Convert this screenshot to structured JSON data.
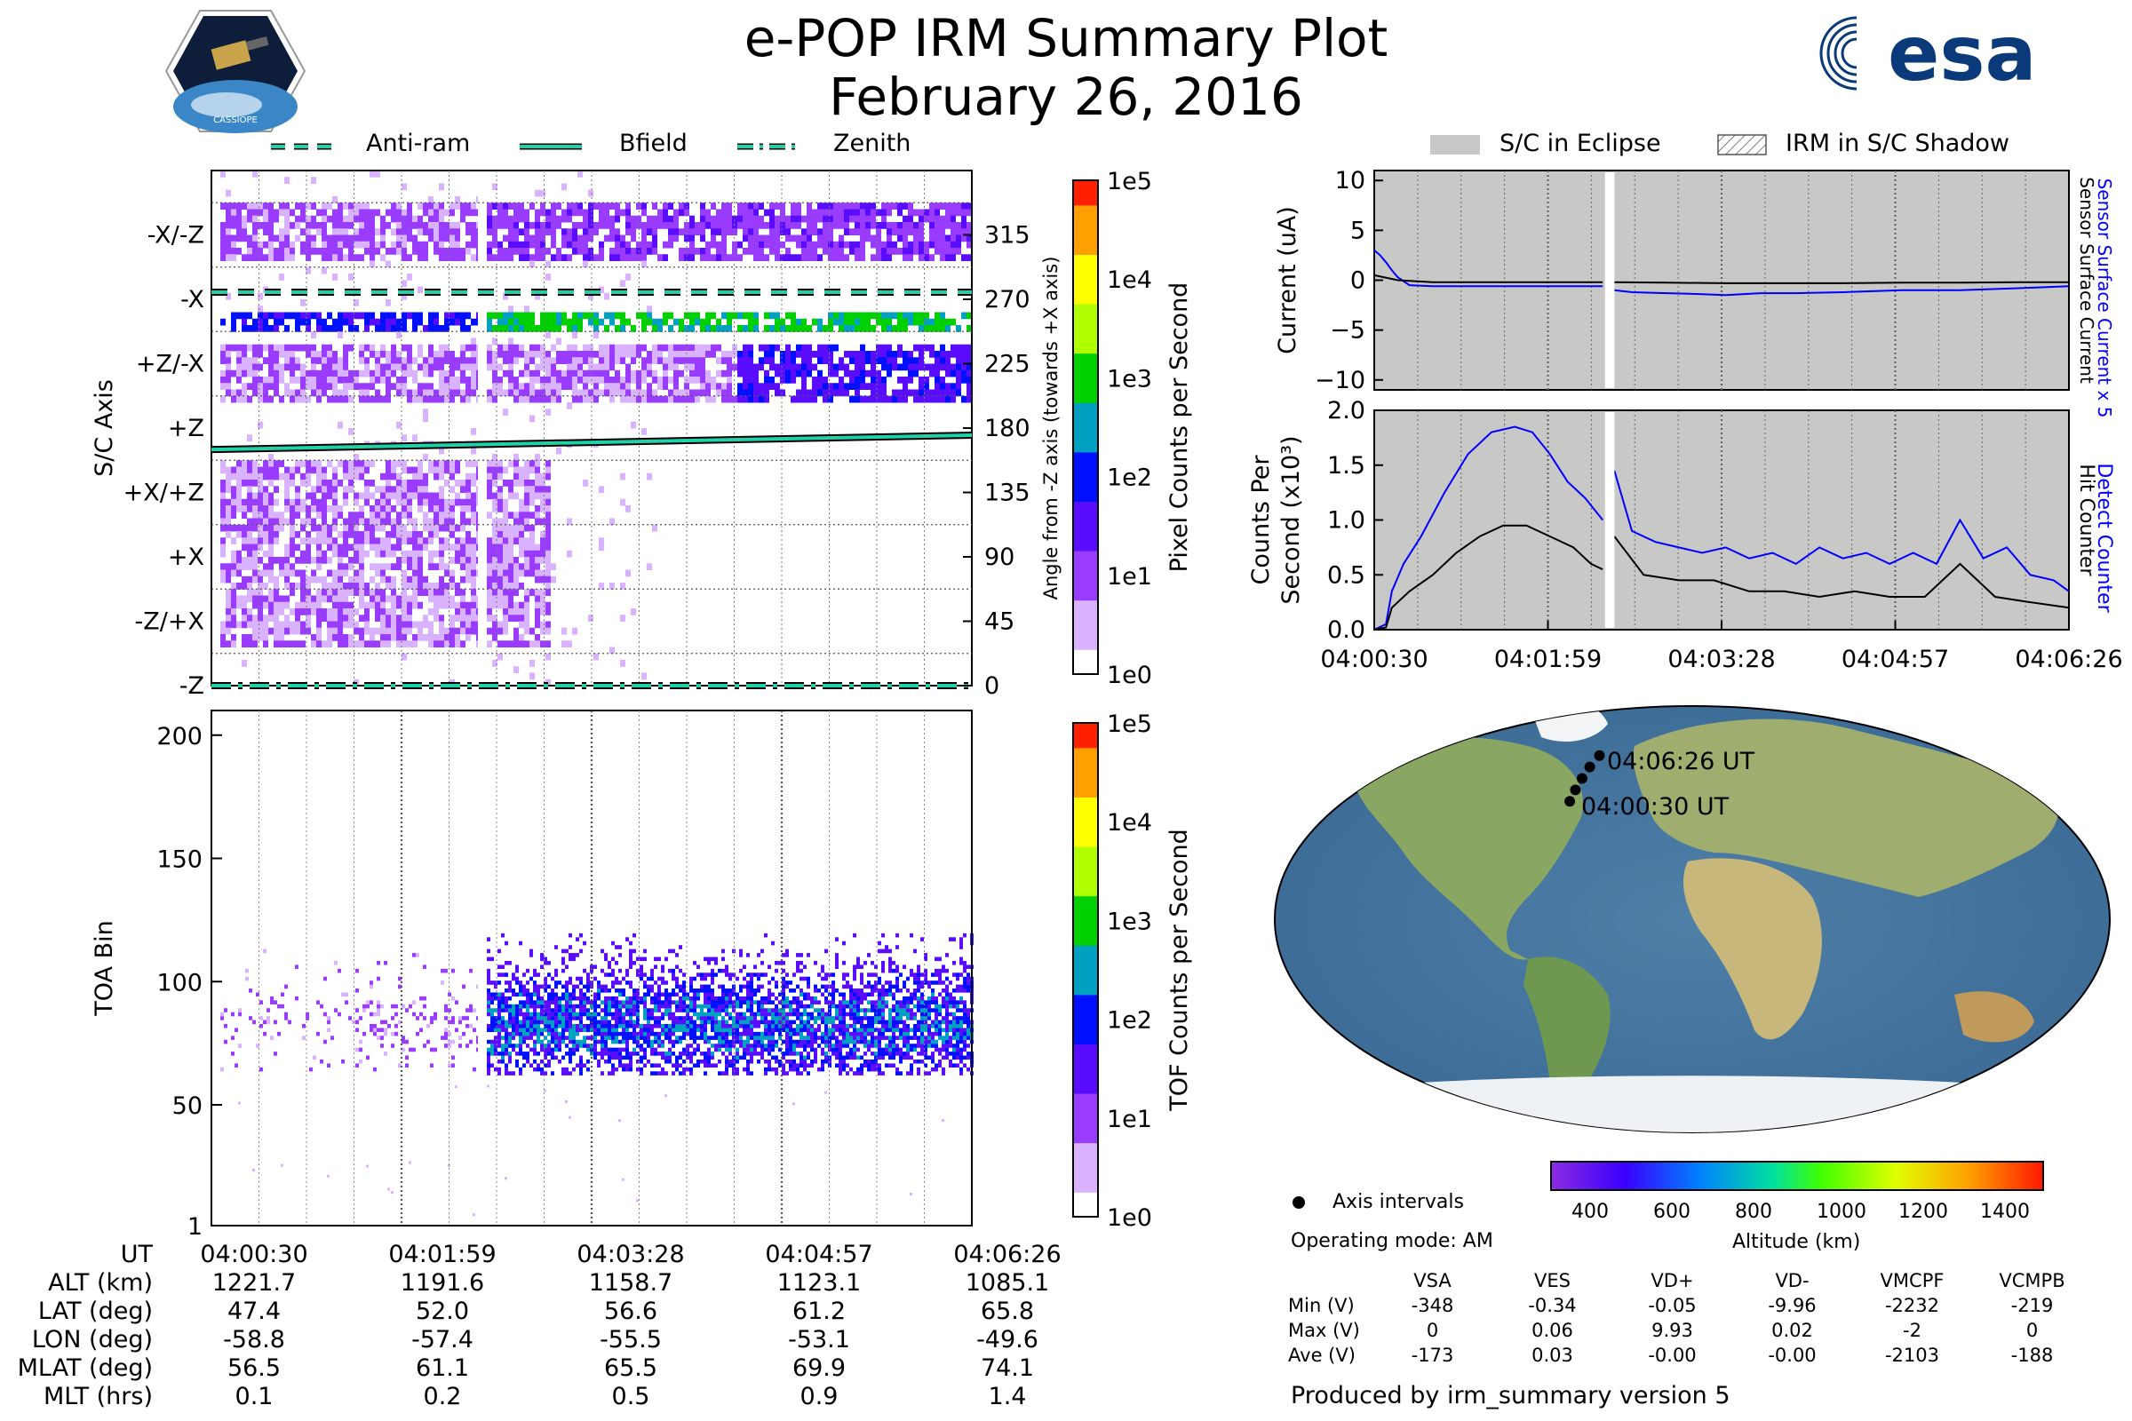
{
  "header": {
    "title": "e-POP IRM Summary Plot",
    "date": "February 26, 2016",
    "logo_left_text": "CASSIOPE",
    "logo_right_text": "esa"
  },
  "colors": {
    "cmap": [
      "#ffffff",
      "#d9b3ff",
      "#9a3cff",
      "#5a0cff",
      "#0010ff",
      "#00a0c0",
      "#00d000",
      "#b0ff00",
      "#ffff00",
      "#ffa000",
      "#ff2000"
    ],
    "anti_ram": "#1fd1a8",
    "bfield": "#1fd1a8",
    "blue": "#0000ff",
    "eclipse": "#c8c9c7"
  },
  "legends": {
    "top_left": [
      {
        "label": "Anti-ram",
        "style": "dashed"
      },
      {
        "label": "Bfield",
        "style": "solid"
      },
      {
        "label": "Zenith",
        "style": "dashdot"
      }
    ],
    "top_right": [
      {
        "label": "S/C in Eclipse"
      },
      {
        "label": "IRM in S/C Shadow"
      }
    ]
  },
  "chart_data": [
    {
      "type": "heatmap",
      "name": "sc-axis-spectrogram",
      "ylabel": "S/C Axis",
      "ylabel_right": "Angle from -Z axis (towards +X axis)",
      "y_axis_labels": [
        "-X/-Z",
        "-X",
        "+Z/-X",
        "+Z",
        "+X/+Z",
        "+X",
        "-Z/+X",
        "-Z"
      ],
      "y_right_ticks": [
        "315",
        "270",
        "225",
        "180",
        "135",
        "90",
        "45",
        "0"
      ],
      "ylim": [
        0,
        360
      ],
      "colorbar": {
        "label": "Pixel Counts per Second",
        "ticks": [
          "1e5",
          "1e4",
          "1e3",
          "1e2",
          "1e1",
          "1e0"
        ],
        "scale": "log"
      },
      "lines": [
        {
          "name": "Anti-ram",
          "angles": [
            275,
            275
          ],
          "style": "dashed"
        },
        {
          "name": "Zenith",
          "angles": [
            0,
            0
          ],
          "style": "dashdot"
        },
        {
          "name": "Bfield",
          "angles": [
            165,
            175
          ],
          "style": "solid"
        }
      ]
    },
    {
      "type": "heatmap",
      "name": "toa-spectrogram",
      "ylabel": "TOA Bin",
      "y_ticks": [
        "200",
        "150",
        "100",
        "50",
        "1"
      ],
      "ylim": [
        1,
        210
      ],
      "colorbar": {
        "label": "TOF Counts per Second",
        "ticks": [
          "1e5",
          "1e4",
          "1e3",
          "1e2",
          "1e1",
          "1e0"
        ],
        "scale": "log"
      }
    },
    {
      "type": "line",
      "name": "sensor-current",
      "ylabel": "Current (uA)",
      "y_ticks": [
        "10",
        "5",
        "0",
        "−5",
        "−10"
      ],
      "ylim": [
        -11,
        11
      ],
      "right_labels": [
        "Sensor Surface Current x 5",
        "Sensor Surface Current"
      ],
      "series": [
        {
          "name": "Sensor Surface Current x 5",
          "color": "#0000ff",
          "x": [
            0,
            0.05,
            0.1,
            0.15,
            0.2,
            0.3,
            0.5,
            0.7,
            0.9,
            1.0,
            1.2,
            1.5,
            1.8,
            1.95,
            2.05,
            2.2,
            2.5,
            2.8,
            3.0,
            3.3,
            3.6,
            4.0,
            4.5,
            5.0,
            5.5,
            5.93
          ],
          "y": [
            3,
            2.5,
            1.8,
            1.0,
            0.3,
            -0.5,
            -0.6,
            -0.6,
            -0.6,
            -0.6,
            -0.6,
            -0.6,
            -0.6,
            -0.6,
            -1.0,
            -1.2,
            -1.3,
            -1.4,
            -1.5,
            -1.3,
            -1.3,
            -1.2,
            -1.0,
            -1.0,
            -0.8,
            -0.6
          ]
        },
        {
          "name": "Sensor Surface Current",
          "color": "#000000",
          "x": [
            0,
            0.2,
            0.5,
            1.0,
            1.5,
            1.95,
            2.05,
            2.5,
            3.0,
            3.5,
            4.0,
            4.5,
            5.0,
            5.5,
            5.93
          ],
          "y": [
            0.5,
            0.0,
            -0.2,
            -0.2,
            -0.2,
            -0.2,
            -0.2,
            -0.25,
            -0.3,
            -0.3,
            -0.3,
            -0.25,
            -0.25,
            -0.2,
            -0.2
          ]
        }
      ]
    },
    {
      "type": "line",
      "name": "detect-counter",
      "ylabel": "Counts Per Second (x10³)",
      "y_ticks": [
        "2.0",
        "1.5",
        "1.0",
        "0.5",
        "0.0"
      ],
      "ylim": [
        0,
        2.0
      ],
      "x_tick_labels": [
        "04:00:30",
        "04:01:59",
        "04:03:28",
        "04:04:57",
        "04:06:26"
      ],
      "right_labels": [
        "Detect Counter",
        "Hit Counter"
      ],
      "series": [
        {
          "name": "Detect Counter",
          "color": "#0000ff",
          "x": [
            0,
            0.1,
            0.15,
            0.25,
            0.4,
            0.6,
            0.8,
            1.0,
            1.2,
            1.35,
            1.5,
            1.65,
            1.8,
            1.95,
            2.05,
            2.2,
            2.4,
            2.6,
            2.8,
            3.0,
            3.2,
            3.4,
            3.6,
            3.8,
            4.0,
            4.2,
            4.4,
            4.6,
            4.8,
            5.0,
            5.2,
            5.4,
            5.6,
            5.8,
            5.93
          ],
          "y": [
            0.0,
            0.05,
            0.35,
            0.6,
            0.85,
            1.25,
            1.6,
            1.8,
            1.85,
            1.8,
            1.6,
            1.35,
            1.2,
            1.0,
            1.45,
            0.9,
            0.8,
            0.75,
            0.7,
            0.75,
            0.65,
            0.7,
            0.6,
            0.75,
            0.65,
            0.7,
            0.6,
            0.7,
            0.6,
            1.0,
            0.65,
            0.75,
            0.5,
            0.45,
            0.35
          ]
        },
        {
          "name": "Hit Counter",
          "color": "#000000",
          "x": [
            0,
            0.1,
            0.15,
            0.3,
            0.5,
            0.7,
            0.9,
            1.1,
            1.3,
            1.5,
            1.7,
            1.85,
            1.95,
            2.05,
            2.3,
            2.6,
            2.9,
            3.2,
            3.5,
            3.8,
            4.1,
            4.4,
            4.7,
            5.0,
            5.3,
            5.6,
            5.93
          ],
          "y": [
            0.0,
            0.02,
            0.2,
            0.35,
            0.5,
            0.7,
            0.85,
            0.95,
            0.95,
            0.85,
            0.75,
            0.6,
            0.55,
            0.85,
            0.5,
            0.45,
            0.45,
            0.35,
            0.35,
            0.3,
            0.35,
            0.3,
            0.3,
            0.6,
            0.3,
            0.25,
            0.2
          ]
        }
      ]
    }
  ],
  "map": {
    "label_start": "04:00:30 UT",
    "label_end": "04:06:26 UT",
    "track": [
      [
        -58.8,
        47.4
      ],
      [
        -57.4,
        52.0
      ],
      [
        -55.5,
        56.6
      ],
      [
        -53.1,
        61.2
      ],
      [
        -49.6,
        65.8
      ]
    ],
    "altitude_colorbar": {
      "label": "Altitude (km)",
      "ticks": [
        "400",
        "600",
        "800",
        "1000",
        "1200",
        "1400"
      ]
    },
    "axis_intervals_label": "Axis intervals",
    "operating_mode": "Operating mode: AM"
  },
  "stats": {
    "columns": [
      "VSA",
      "VES",
      "VD+",
      "VD-",
      "VMCPF",
      "VCMPB"
    ],
    "rows": [
      {
        "label": "Min (V)",
        "values": [
          "-348",
          "-0.34",
          "-0.05",
          "-9.96",
          "-2232",
          "-219"
        ]
      },
      {
        "label": "Max (V)",
        "values": [
          "0",
          "0.06",
          "9.93",
          "0.02",
          "-2",
          "0"
        ]
      },
      {
        "label": "Ave (V)",
        "values": [
          "-173",
          "0.03",
          "-0.00",
          "-0.00",
          "-2103",
          "-188"
        ]
      }
    ],
    "produced_by": "Produced by irm_summary version 5"
  },
  "ephemeris": {
    "rows": [
      {
        "label": "UT",
        "values": [
          "04:00:30",
          "04:01:59",
          "04:03:28",
          "04:04:57",
          "04:06:26"
        ]
      },
      {
        "label": "ALT (km)",
        "values": [
          "1221.7",
          "1191.6",
          "1158.7",
          "1123.1",
          "1085.1"
        ]
      },
      {
        "label": "LAT (deg)",
        "values": [
          "47.4",
          "52.0",
          "56.6",
          "61.2",
          "65.8"
        ]
      },
      {
        "label": "LON (deg)",
        "values": [
          "-58.8",
          "-57.4",
          "-55.5",
          "-53.1",
          "-49.6"
        ]
      },
      {
        "label": "MLAT (deg)",
        "values": [
          "56.5",
          "61.1",
          "65.5",
          "69.9",
          "74.1"
        ]
      },
      {
        "label": "MLT (hrs)",
        "values": [
          "0.1",
          "0.2",
          "0.5",
          "0.9",
          "1.4"
        ]
      }
    ]
  }
}
